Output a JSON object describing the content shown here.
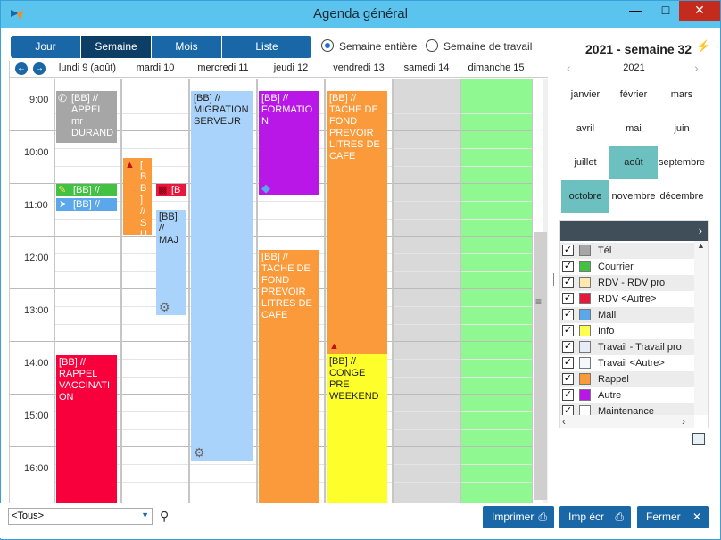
{
  "window": {
    "title": "Agenda général"
  },
  "tabs": [
    {
      "label": "Jour",
      "active": false
    },
    {
      "label": "Semaine",
      "active": true
    },
    {
      "label": "Mois",
      "active": false
    },
    {
      "label": "Liste",
      "active": false
    }
  ],
  "range": {
    "option1": "Semaine entière",
    "option2": "Semaine de travail",
    "selected": "Semaine entière"
  },
  "week_title": "2021 - semaine 32",
  "days": [
    "lundi 9 (août)",
    "mardi 10",
    "mercredi 11",
    "jeudi 12",
    "vendredi 13",
    "samedi 14",
    "dimanche 15"
  ],
  "times": [
    "9:00",
    "10:00",
    "11:00",
    "12:00",
    "13:00",
    "14:00",
    "15:00",
    "16:00"
  ],
  "events": {
    "mon_1": "[BB] // APPEL mr DURAND",
    "mon_2": "[BB] //",
    "mon_3": "[BB] //",
    "mon_4": "[BB] // RAPPEL VACCINATION",
    "tue_1": "[BB] // SUL",
    "tue_2": "[BB]",
    "tue_3": "[BB] // MAJ",
    "wed_1": "[BB] // MIGRATION SERVEUR",
    "thu_1": "[BB] // FORMATION",
    "thu_2": "[BB] // TACHE DE FOND PREVOIR LITRES DE CAFE",
    "fri_1": "[BB] // TACHE DE FOND PREVOIR LITRES DE CAFE",
    "fri_2": "[BB] // CONGE PRE WEEKEND"
  },
  "mini_calendar": {
    "year": "2021",
    "months": [
      "janvier",
      "février",
      "mars",
      "avril",
      "mai",
      "juin",
      "juillet",
      "août",
      "septembre",
      "octobre",
      "novembre",
      "décembre"
    ],
    "selected": [
      "août",
      "octobre"
    ]
  },
  "legend": {
    "items": [
      {
        "label": "Tél",
        "color": "#a6a6a6"
      },
      {
        "label": "Courrier",
        "color": "#43c143"
      },
      {
        "label": "RDV - RDV pro",
        "color": "#fde8b0"
      },
      {
        "label": "RDV <Autre>",
        "color": "#e8173c"
      },
      {
        "label": "Mail",
        "color": "#5aa7ea"
      },
      {
        "label": "Info",
        "color": "#fefe52"
      },
      {
        "label": "Travail - Travail pro",
        "color": "#e6edf6"
      },
      {
        "label": "Travail <Autre>",
        "color": "#f3f8fd"
      },
      {
        "label": "Rappel",
        "color": "#fb9a3b"
      },
      {
        "label": "Autre",
        "color": "#b817e8"
      },
      {
        "label": "Maintenance",
        "color": "#ffffff"
      }
    ]
  },
  "bottom": {
    "filter_value": "<Tous>",
    "print_label": "Imprimer",
    "print_screen_label": "Imp écr",
    "close_label": "Fermer"
  }
}
